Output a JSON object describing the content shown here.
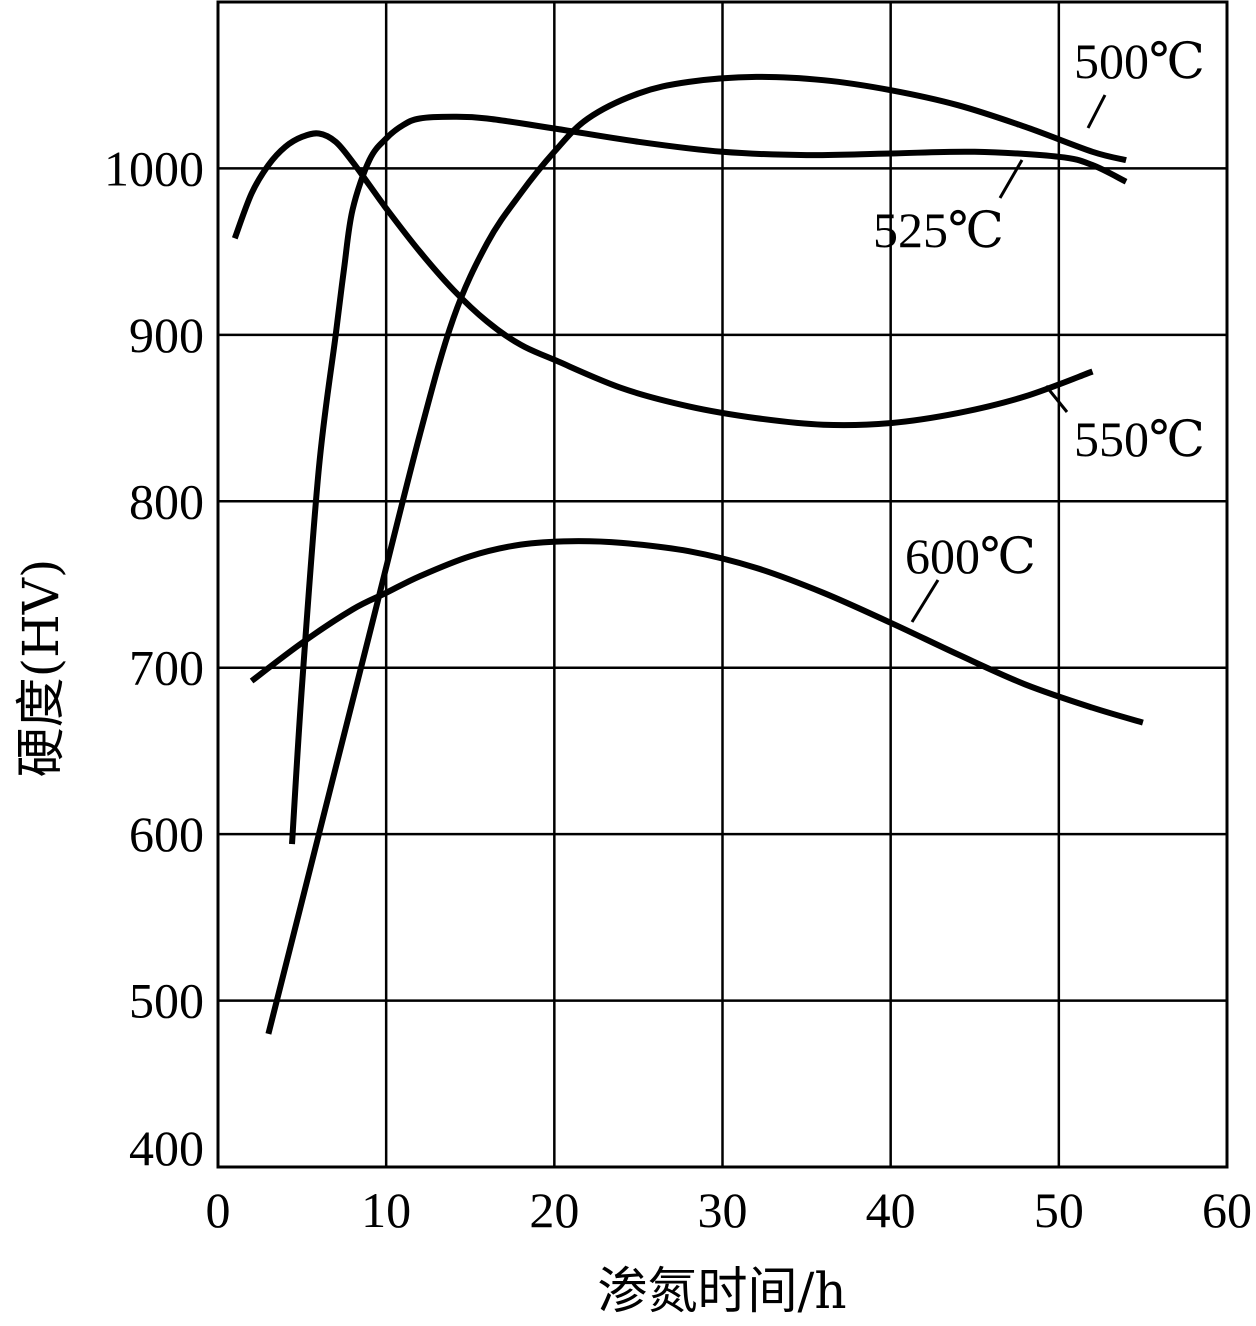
{
  "chart_data": {
    "type": "line",
    "xlabel": "渗氮时间/h",
    "ylabel": "硬度(HV)",
    "xlim": [
      0,
      60
    ],
    "ylim": [
      400,
      1100
    ],
    "xticks": [
      0,
      10,
      20,
      30,
      40,
      50,
      60
    ],
    "yticks": [
      400,
      500,
      600,
      700,
      800,
      900,
      1000
    ],
    "grid": true,
    "legend": "none",
    "series": [
      {
        "name": "500℃",
        "x": [
          3,
          6,
          9,
          12,
          14,
          16,
          18,
          20,
          22,
          25,
          28,
          32,
          36,
          40,
          44,
          48,
          52,
          54
        ],
        "y": [
          480,
          600,
          720,
          840,
          910,
          955,
          985,
          1010,
          1030,
          1045,
          1052,
          1055,
          1053,
          1047,
          1038,
          1025,
          1010,
          1005
        ]
      },
      {
        "name": "525℃",
        "x": [
          4.4,
          5,
          6,
          7,
          7.5,
          8,
          9,
          10,
          11,
          12,
          14,
          16,
          20,
          25,
          30,
          35,
          40,
          45,
          50,
          52,
          54
        ],
        "y": [
          594,
          690,
          820,
          900,
          940,
          975,
          1005,
          1018,
          1026,
          1030,
          1031,
          1030,
          1024,
          1016,
          1010,
          1008,
          1009,
          1010,
          1007,
          1002,
          992
        ]
      },
      {
        "name": "550℃",
        "x": [
          1,
          2,
          3,
          4,
          5,
          6,
          7,
          8,
          9,
          10,
          12,
          14,
          16,
          18,
          20,
          24,
          28,
          32,
          36,
          40,
          44,
          48,
          52
        ],
        "y": [
          958,
          985,
          1002,
          1013,
          1019,
          1021,
          1016,
          1004,
          990,
          976,
          950,
          927,
          908,
          894,
          885,
          868,
          857,
          850,
          846,
          847,
          853,
          863,
          878
        ]
      },
      {
        "name": "600℃",
        "x": [
          2,
          5,
          8,
          10,
          12,
          15,
          18,
          21,
          24,
          28,
          32,
          36,
          40,
          44,
          48,
          52,
          55
        ],
        "y": [
          692,
          715,
          735,
          745,
          755,
          767,
          774,
          776,
          775,
          770,
          760,
          745,
          727,
          708,
          690,
          676,
          667
        ]
      }
    ],
    "annotations": [
      {
        "text": "500℃",
        "series": "500℃"
      },
      {
        "text": "525℃",
        "series": "525℃"
      },
      {
        "text": "550℃",
        "series": "550℃"
      },
      {
        "text": "600℃",
        "series": "600℃"
      }
    ]
  }
}
